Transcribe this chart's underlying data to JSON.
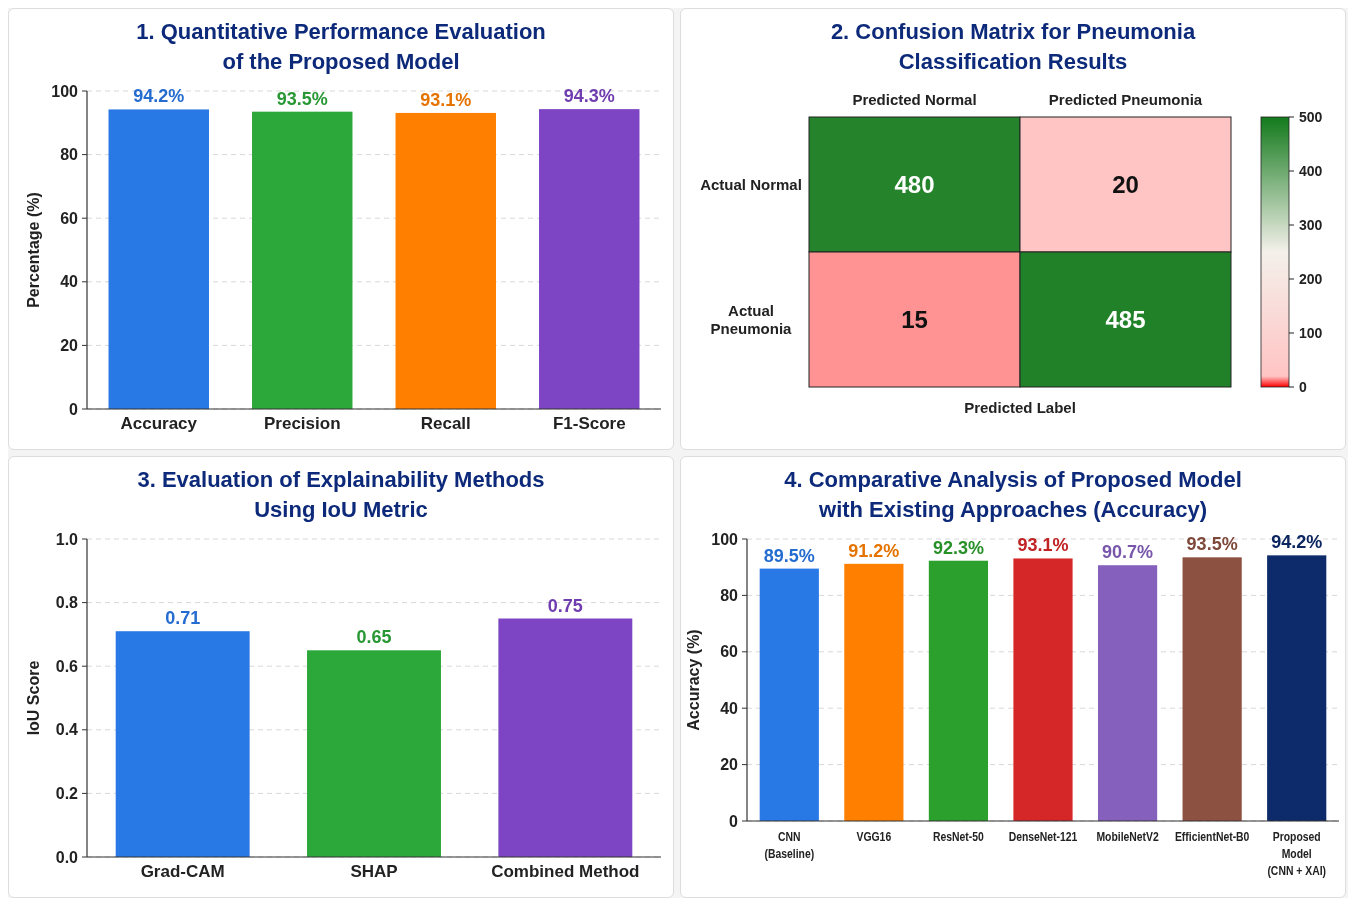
{
  "chart_data": [
    {
      "type": "bar",
      "title": "1. Quantitative Performance Evaluation\nof the Proposed Model",
      "ylabel": "Percentage (%)",
      "categories": [
        "Accuracy",
        "Precision",
        "Recall",
        "F1-Score"
      ],
      "values": [
        94.2,
        93.5,
        93.1,
        94.3
      ],
      "colors": [
        "#2878e6",
        "#2ca83a",
        "#ff8000",
        "#7d44c4"
      ],
      "value_labels": [
        "94.2%",
        "93.5%",
        "93.1%",
        "94.3%"
      ],
      "ylim": [
        0,
        100
      ],
      "yticks": [
        0,
        20,
        40,
        60,
        80,
        100
      ],
      "grid": "y"
    },
    {
      "type": "heatmap",
      "title": "2. Confusion Matrix for Pneumonia\nClassification Results",
      "xlabel": "Predicted Label",
      "categories": [
        "Predicted Normal",
        "Predicted Pneumonia"
      ],
      "y_categories": [
        "Actual Normal",
        "Actual\nPneumonia"
      ],
      "cells": [
        [
          480,
          20
        ],
        [
          15,
          485
        ]
      ],
      "data_labels": true,
      "clim": [
        0,
        500
      ],
      "cticks": [
        0,
        100,
        200,
        300,
        400,
        500
      ]
    },
    {
      "type": "bar",
      "title": "3. Evaluation of Explainability Methods\nUsing IoU Metric",
      "ylabel": "IoU Score",
      "categories": [
        "Grad-CAM",
        "SHAP",
        "Combined Method"
      ],
      "values": [
        0.71,
        0.65,
        0.75
      ],
      "colors": [
        "#2878e6",
        "#2ca83a",
        "#7d44c4"
      ],
      "value_labels": [
        "0.71",
        "0.65",
        "0.75"
      ],
      "ylim": [
        0,
        1
      ],
      "yticks": [
        {
          "value": 0,
          "label": "0.0"
        },
        0.2,
        0.4,
        0.6,
        0.8,
        {
          "value": 1,
          "label": "1.0"
        }
      ],
      "grid": "y"
    },
    {
      "type": "bar",
      "title": "4. Comparative Analysis of Proposed Model\nwith Existing Approaches (Accuracy)",
      "ylabel": "Accuracy (%)",
      "categories": [
        "CNN\n(Baseline)",
        "VGG16",
        "ResNet-50",
        "DenseNet-121",
        "MobileNetV2",
        "EfficientNet-B0",
        "Proposed\nModel\n(CNN + XAI)"
      ],
      "values": [
        89.5,
        91.2,
        92.3,
        93.1,
        90.7,
        93.5,
        94.2
      ],
      "colors": [
        "#2878e6",
        "#ff8000",
        "#2ca02c",
        "#d62728",
        "#8560bd",
        "#8c5140",
        "#0d2a6b"
      ],
      "value_labels": [
        "89.5%",
        "91.2%",
        "92.3%",
        "93.1%",
        "90.7%",
        "93.5%",
        "94.2%"
      ],
      "ylim": [
        0,
        100
      ],
      "yticks": [
        0,
        20,
        40,
        60,
        80,
        100
      ],
      "grid": "y"
    }
  ]
}
